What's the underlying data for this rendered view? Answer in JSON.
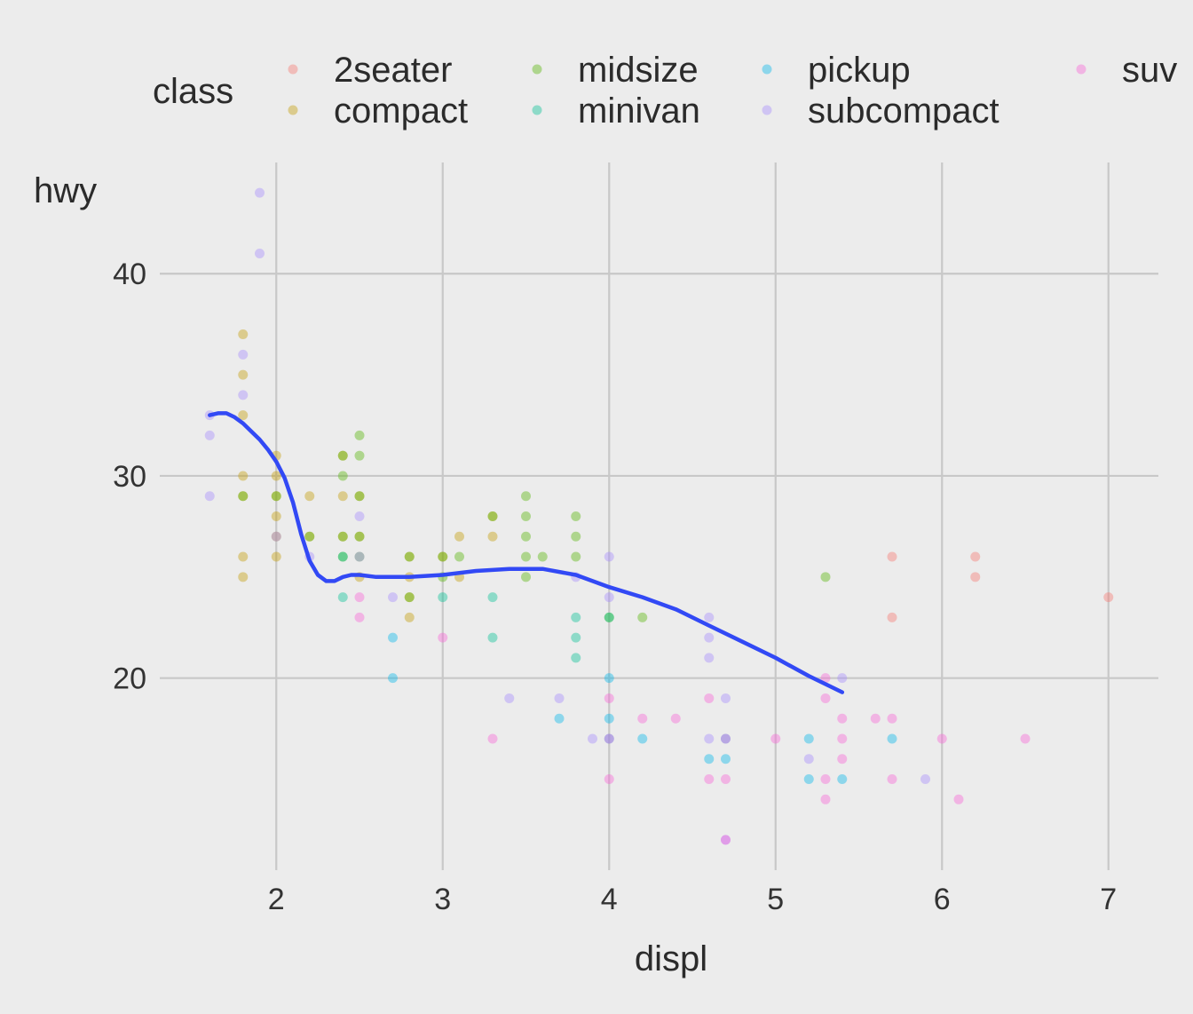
{
  "chart_data": {
    "type": "scatter",
    "xlabel": "displ",
    "ylabel": "hwy",
    "xlim": [
      1.3,
      7.3
    ],
    "ylim": [
      10.5,
      45.5
    ],
    "xticks": [
      2,
      3,
      4,
      5,
      6,
      7
    ],
    "yticks": [
      20,
      30,
      40
    ],
    "grid": true,
    "legend": {
      "title": "class",
      "placement": "top",
      "entries": [
        {
          "name": "2seater",
          "color": "#f8766d"
        },
        {
          "name": "compact",
          "color": "#c49a00"
        },
        {
          "name": "midsize",
          "color": "#53b400"
        },
        {
          "name": "minivan",
          "color": "#00c094"
        },
        {
          "name": "pickup",
          "color": "#00b6eb"
        },
        {
          "name": "subcompact",
          "color": "#a58aff"
        },
        {
          "name": "suv",
          "color": "#fb61d7"
        }
      ]
    },
    "series": [
      {
        "name": "2seater",
        "color": "#f8766d",
        "points": [
          [
            5.7,
            26
          ],
          [
            5.7,
            23
          ],
          [
            6.2,
            26
          ],
          [
            6.2,
            25
          ],
          [
            7.0,
            24
          ]
        ]
      },
      {
        "name": "compact",
        "color": "#c49a00",
        "points": [
          [
            1.8,
            37
          ],
          [
            1.8,
            35
          ],
          [
            1.8,
            33
          ],
          [
            1.8,
            30
          ],
          [
            1.8,
            29
          ],
          [
            1.8,
            26
          ],
          [
            1.8,
            25
          ],
          [
            2.0,
            31
          ],
          [
            2.0,
            30
          ],
          [
            2.0,
            29
          ],
          [
            2.0,
            28
          ],
          [
            2.0,
            27
          ],
          [
            2.0,
            26
          ],
          [
            2.2,
            29
          ],
          [
            2.2,
            27
          ],
          [
            2.4,
            31
          ],
          [
            2.4,
            29
          ],
          [
            2.4,
            27
          ],
          [
            2.5,
            29
          ],
          [
            2.5,
            27
          ],
          [
            2.5,
            25
          ],
          [
            2.8,
            26
          ],
          [
            2.8,
            25
          ],
          [
            2.8,
            24
          ],
          [
            2.8,
            23
          ],
          [
            3.0,
            26
          ],
          [
            3.1,
            27
          ],
          [
            3.1,
            25
          ],
          [
            3.3,
            28
          ],
          [
            3.3,
            27
          ]
        ]
      },
      {
        "name": "midsize",
        "color": "#53b400",
        "points": [
          [
            1.8,
            29
          ],
          [
            2.0,
            29
          ],
          [
            2.2,
            27
          ],
          [
            2.4,
            31
          ],
          [
            2.4,
            30
          ],
          [
            2.4,
            27
          ],
          [
            2.4,
            26
          ],
          [
            2.5,
            32
          ],
          [
            2.5,
            31
          ],
          [
            2.5,
            29
          ],
          [
            2.5,
            27
          ],
          [
            2.5,
            26
          ],
          [
            2.8,
            26
          ],
          [
            2.8,
            24
          ],
          [
            3.0,
            26
          ],
          [
            3.0,
            25
          ],
          [
            3.1,
            26
          ],
          [
            3.3,
            28
          ],
          [
            3.5,
            29
          ],
          [
            3.5,
            28
          ],
          [
            3.5,
            27
          ],
          [
            3.5,
            26
          ],
          [
            3.5,
            25
          ],
          [
            3.6,
            26
          ],
          [
            3.8,
            28
          ],
          [
            3.8,
            27
          ],
          [
            3.8,
            26
          ],
          [
            4.0,
            23
          ],
          [
            4.2,
            23
          ],
          [
            5.3,
            25
          ]
        ]
      },
      {
        "name": "minivan",
        "color": "#00c094",
        "points": [
          [
            2.4,
            24
          ],
          [
            2.4,
            26
          ],
          [
            3.0,
            24
          ],
          [
            3.3,
            24
          ],
          [
            3.3,
            22
          ],
          [
            3.8,
            23
          ],
          [
            3.8,
            22
          ],
          [
            3.8,
            21
          ],
          [
            4.0,
            23
          ]
        ]
      },
      {
        "name": "pickup",
        "color": "#00b6eb",
        "points": [
          [
            2.7,
            22
          ],
          [
            2.7,
            20
          ],
          [
            3.7,
            18
          ],
          [
            4.0,
            20
          ],
          [
            4.0,
            18
          ],
          [
            4.0,
            17
          ],
          [
            4.2,
            17
          ],
          [
            4.6,
            16
          ],
          [
            4.7,
            17
          ],
          [
            4.7,
            16
          ],
          [
            5.2,
            17
          ],
          [
            5.2,
            15
          ],
          [
            5.4,
            15
          ],
          [
            5.7,
            17
          ]
        ]
      },
      {
        "name": "subcompact",
        "color": "#a58aff",
        "points": [
          [
            1.6,
            33
          ],
          [
            1.6,
            32
          ],
          [
            1.6,
            29
          ],
          [
            1.8,
            36
          ],
          [
            1.8,
            34
          ],
          [
            1.9,
            44
          ],
          [
            1.9,
            41
          ],
          [
            2.0,
            27
          ],
          [
            2.2,
            26
          ],
          [
            2.5,
            28
          ],
          [
            2.5,
            26
          ],
          [
            2.7,
            24
          ],
          [
            3.4,
            19
          ],
          [
            3.7,
            19
          ],
          [
            3.8,
            25
          ],
          [
            4.0,
            26
          ],
          [
            4.0,
            24
          ],
          [
            4.6,
            23
          ],
          [
            4.6,
            22
          ],
          [
            4.6,
            21
          ],
          [
            5.4,
            20
          ],
          [
            3.9,
            17
          ],
          [
            4.6,
            17
          ],
          [
            4.7,
            19
          ],
          [
            5.2,
            16
          ],
          [
            5.9,
            15
          ],
          [
            4.7,
            12
          ]
        ]
      },
      {
        "name": "suv",
        "color": "#fb61d7",
        "points": [
          [
            2.5,
            24
          ],
          [
            2.5,
            23
          ],
          [
            3.0,
            22
          ],
          [
            3.3,
            17
          ],
          [
            4.0,
            19
          ],
          [
            4.0,
            17
          ],
          [
            4.0,
            15
          ],
          [
            4.2,
            18
          ],
          [
            4.4,
            18
          ],
          [
            4.6,
            19
          ],
          [
            4.6,
            15
          ],
          [
            4.7,
            17
          ],
          [
            4.7,
            15
          ],
          [
            4.7,
            12
          ],
          [
            5.0,
            17
          ],
          [
            5.3,
            20
          ],
          [
            5.3,
            19
          ],
          [
            5.3,
            15
          ],
          [
            5.3,
            14
          ],
          [
            5.4,
            18
          ],
          [
            5.4,
            17
          ],
          [
            5.4,
            16
          ],
          [
            5.6,
            18
          ],
          [
            5.7,
            18
          ],
          [
            5.7,
            15
          ],
          [
            6.0,
            17
          ],
          [
            6.1,
            14
          ],
          [
            6.5,
            17
          ]
        ]
      }
    ],
    "smooth": {
      "color": "#3249f5",
      "points": [
        [
          1.6,
          33
        ],
        [
          1.65,
          33.1
        ],
        [
          1.7,
          33.1
        ],
        [
          1.75,
          32.9
        ],
        [
          1.8,
          32.6
        ],
        [
          1.85,
          32.2
        ],
        [
          1.9,
          31.8
        ],
        [
          1.95,
          31.3
        ],
        [
          2.0,
          30.7
        ],
        [
          2.05,
          29.9
        ],
        [
          2.1,
          28.7
        ],
        [
          2.15,
          27.1
        ],
        [
          2.2,
          25.8
        ],
        [
          2.25,
          25.1
        ],
        [
          2.3,
          24.8
        ],
        [
          2.35,
          24.8
        ],
        [
          2.4,
          25.0
        ],
        [
          2.45,
          25.1
        ],
        [
          2.5,
          25.1
        ],
        [
          2.6,
          25.0
        ],
        [
          2.7,
          25.0
        ],
        [
          2.8,
          25.0
        ],
        [
          3.0,
          25.1
        ],
        [
          3.2,
          25.3
        ],
        [
          3.4,
          25.4
        ],
        [
          3.6,
          25.4
        ],
        [
          3.8,
          25.1
        ],
        [
          4.0,
          24.5
        ],
        [
          4.2,
          24.0
        ],
        [
          4.4,
          23.4
        ],
        [
          4.6,
          22.6
        ],
        [
          4.8,
          21.8
        ],
        [
          5.0,
          21.0
        ],
        [
          5.2,
          20.1
        ],
        [
          5.4,
          19.3
        ]
      ]
    }
  }
}
